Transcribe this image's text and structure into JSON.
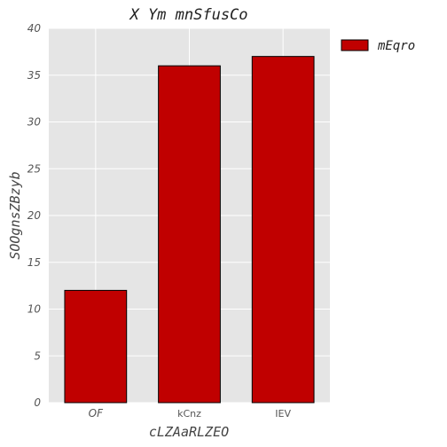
{
  "chart_data": {
    "type": "bar",
    "title": "X  Ym mnSfusCo",
    "xlabel": "cLZAaRLZEO",
    "ylabel": "SOOgnsZBzyb",
    "categories": [
      "OF",
      "kCnz",
      "IEV"
    ],
    "series": [
      {
        "name": "mEqro",
        "values": [
          12,
          36,
          37
        ],
        "color": "#c00000"
      }
    ],
    "ylim": [
      0,
      40
    ],
    "yticks": [
      0,
      5,
      10,
      15,
      20,
      25,
      30,
      35,
      40
    ],
    "grid": true,
    "background": "#e5e5e5",
    "legend_position": "outside-top-right"
  }
}
